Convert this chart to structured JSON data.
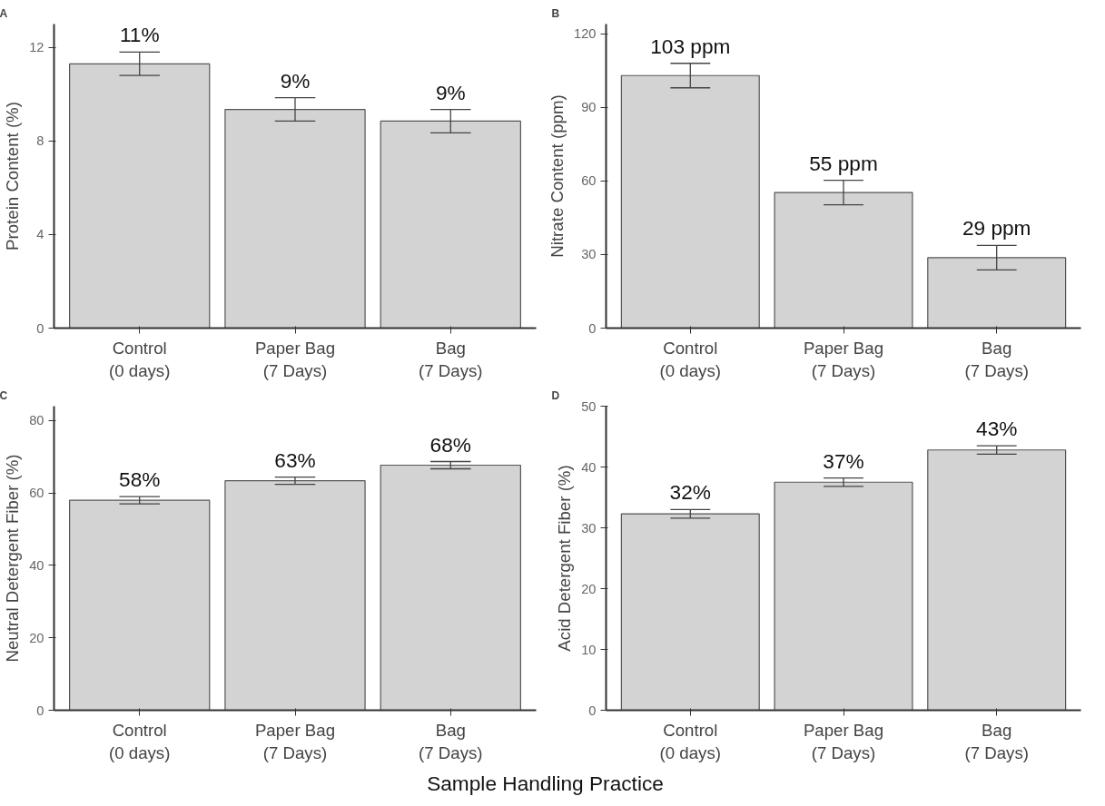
{
  "chart_data": [
    {
      "type": "bar",
      "title": "A",
      "ylabel": "Protein Content (%)",
      "categories": [
        "Control\n(0 days)",
        "Paper Bag\n(7 Days)",
        "Bag\n(7 Days)"
      ],
      "values": [
        11.3,
        9.35,
        8.85
      ],
      "errors": [
        0.5,
        0.5,
        0.5
      ],
      "value_labels": [
        "11%",
        "9%",
        "9%"
      ],
      "color": "#d3d3d3",
      "ylim": [
        0,
        13
      ],
      "yticks": [
        0,
        4,
        8,
        12
      ],
      "grid": false
    },
    {
      "type": "bar",
      "title": "B",
      "ylabel": "Nitrate Content (ppm)",
      "categories": [
        "Control\n(0 days)",
        "Paper Bag\n(7 Days)",
        "Bag\n(7 Days)"
      ],
      "values": [
        103,
        55.3,
        28.7
      ],
      "errors": [
        5,
        5,
        5
      ],
      "value_labels": [
        "103 ppm",
        "55 ppm",
        "29 ppm"
      ],
      "color": "#d3d3d3",
      "ylim": [
        0,
        124
      ],
      "yticks": [
        0,
        30,
        60,
        90,
        120
      ],
      "grid": false
    },
    {
      "type": "bar",
      "title": "C",
      "ylabel": "Neutral Detergent Fiber (%)",
      "categories": [
        "Control\n(0 days)",
        "Paper Bag\n(7 Days)",
        "Bag\n(7 Days)"
      ],
      "values": [
        58,
        63.4,
        67.7
      ],
      "errors": [
        1,
        1,
        1
      ],
      "value_labels": [
        "58%",
        "63%",
        "68%"
      ],
      "color": "#d3d3d3",
      "ylim": [
        0,
        84
      ],
      "yticks": [
        0,
        20,
        40,
        60,
        80
      ],
      "grid": false
    },
    {
      "type": "bar",
      "title": "D",
      "ylabel": "Acid Detergent Fiber (%)",
      "categories": [
        "Control\n(0 days)",
        "Paper Bag\n(7 Days)",
        "Bag\n(7 Days)"
      ],
      "values": [
        32.3,
        37.5,
        42.8
      ],
      "errors": [
        0.7,
        0.7,
        0.7
      ],
      "value_labels": [
        "32%",
        "37%",
        "43%"
      ],
      "color": "#d3d3d3",
      "ylim": [
        0,
        50
      ],
      "yticks": [
        0,
        10,
        20,
        30,
        40,
        50
      ],
      "grid": false
    },
    {
      "type": "other",
      "title": "Sample Handling Practice"
    }
  ]
}
